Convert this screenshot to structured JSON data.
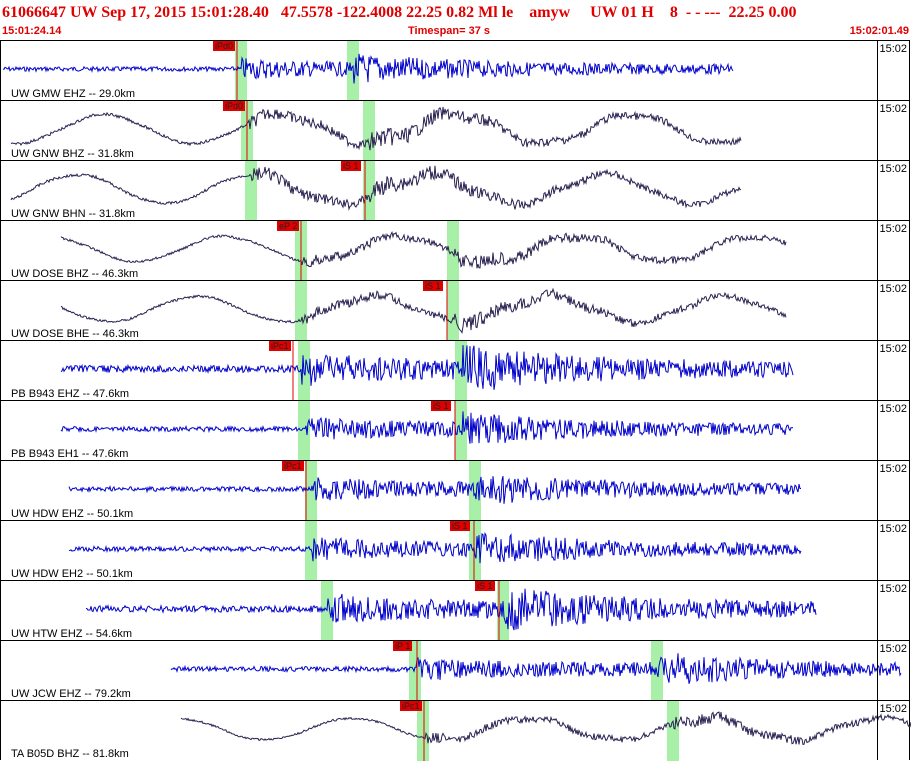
{
  "header": {
    "title": "61066647 UW Sep 17, 2015 15:01:28.40   47.5578 -122.4008 22.25 0.82 Ml le    amyw     UW 01 H    8  - - ---  22.25 0.00",
    "start_time": "15:01:24.14",
    "timespan": "Timespan=  37 s",
    "end_time": "15:02:01.49"
  },
  "colors": {
    "title": "#e00000",
    "pick": "#e00000",
    "blue_trace": "#0000cc",
    "dark_trace": "#2a2050",
    "window": "#a8f0a8"
  },
  "panels": [
    {
      "label": "UW GMW EHZ -- 29.0km",
      "time": "15:02",
      "color": "blue",
      "pick": "iPd0"
    },
    {
      "label": "UW GNW BHZ -- 31.8km",
      "time": "15:02",
      "color": "dark",
      "pick": "iPd0"
    },
    {
      "label": "UW GNW BHN -- 31.8km",
      "time": "15:02",
      "color": "dark",
      "pick": "iS 1"
    },
    {
      "label": "UW DOSE BHZ -- 46.3km",
      "time": "15:02",
      "color": "dark",
      "pick": "eP 2"
    },
    {
      "label": "UW DOSE BHE -- 46.3km",
      "time": "15:02",
      "color": "dark",
      "pick": "iS 1"
    },
    {
      "label": "PB B943 EHZ -- 47.6km",
      "time": "15:02",
      "color": "blue",
      "pick": "iPc1"
    },
    {
      "label": "PB B943 EH1 -- 47.6km",
      "time": "15:02",
      "color": "blue",
      "pick": "iS 1"
    },
    {
      "label": "UW HDW EHZ -- 50.1km",
      "time": "15:02",
      "color": "blue",
      "pick": "iPc1"
    },
    {
      "label": "UW HDW EH2 -- 50.1km",
      "time": "15:02",
      "color": "blue",
      "pick": "iS 1"
    },
    {
      "label": "UW HTW EHZ -- 54.6km",
      "time": "15:02",
      "color": "blue",
      "pick": "iS 1"
    },
    {
      "label": "UW JCW EHZ -- 79.2km",
      "time": "15:02",
      "color": "blue",
      "pick": "iP 1"
    },
    {
      "label": "TA B05D BHZ -- 81.8km",
      "time": "15:02",
      "color": "dark",
      "pick": "iPc1"
    }
  ]
}
